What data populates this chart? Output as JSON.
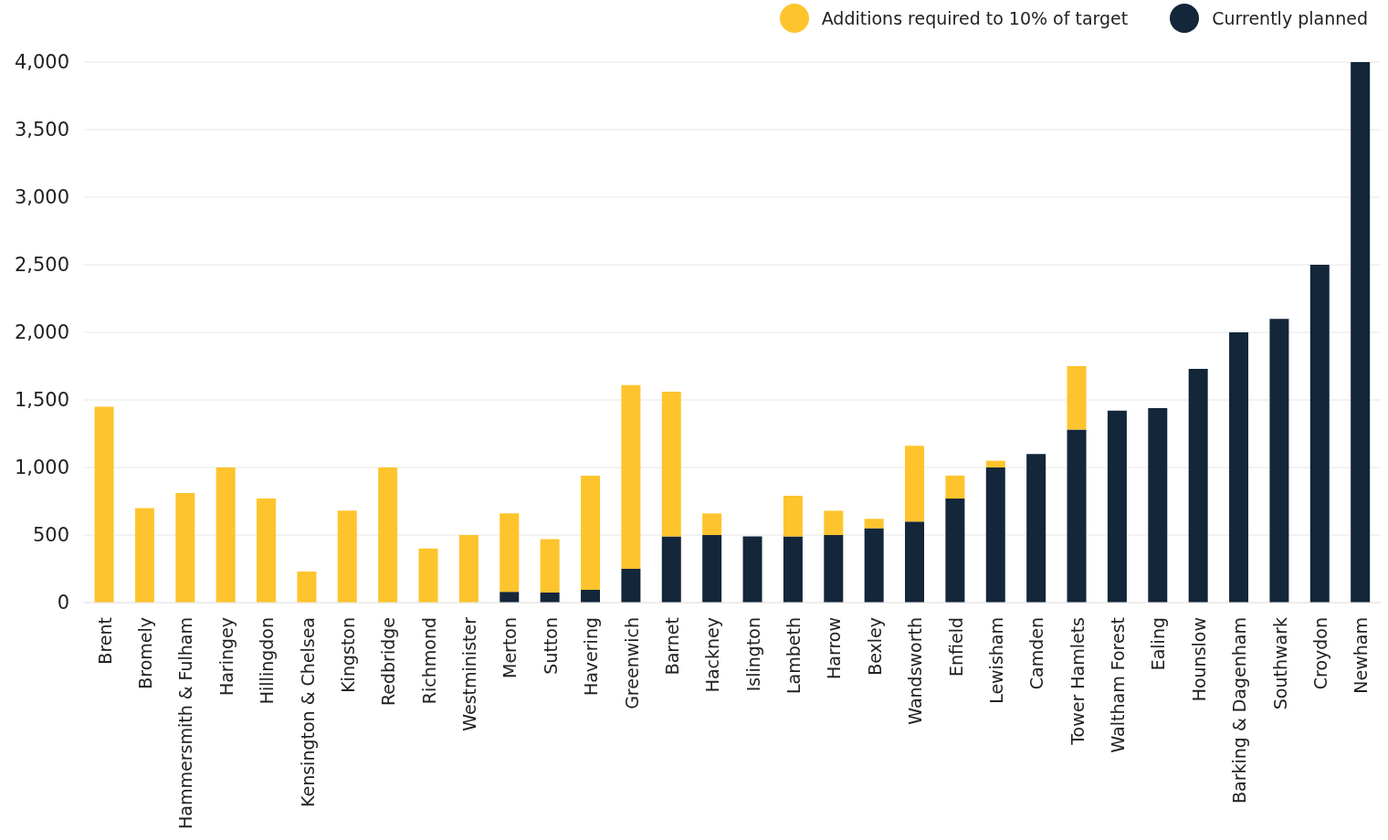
{
  "chart_data": {
    "type": "bar",
    "stacked": true,
    "categories": [
      "Brent",
      "Bromely",
      "Hammersmith & Fulham",
      "Haringey",
      "Hillingdon",
      "Kensington & Chelsea",
      "Kingston",
      "Redbridge",
      "Richmond",
      "Westminister",
      "Merton",
      "Sutton",
      "Havering",
      "Greenwich",
      "Barnet",
      "Hackney",
      "Islington",
      "Lambeth",
      "Harrow",
      "Bexley",
      "Wandsworth",
      "Enfield",
      "Lewisham",
      "Camden",
      "Tower Hamlets",
      "Waltham Forest",
      "Ealing",
      "Hounslow",
      "Barking & Dagenham",
      "Southwark",
      "Croydon",
      "Newham"
    ],
    "series": [
      {
        "name": "Currently planned",
        "color": "#13263a",
        "values": [
          0,
          0,
          0,
          0,
          0,
          0,
          0,
          0,
          0,
          0,
          80,
          75,
          95,
          250,
          490,
          500,
          490,
          490,
          500,
          550,
          600,
          770,
          1000,
          1100,
          1280,
          1420,
          1440,
          1730,
          2000,
          2100,
          2500,
          4000
        ]
      },
      {
        "name": "Additions required to 10% of target",
        "color": "#fec42d",
        "values": [
          1450,
          700,
          810,
          1000,
          770,
          230,
          680,
          1000,
          400,
          500,
          580,
          395,
          845,
          1360,
          1070,
          160,
          0,
          300,
          180,
          70,
          560,
          170,
          50,
          0,
          470,
          0,
          0,
          0,
          0,
          0,
          0,
          0
        ]
      }
    ],
    "ylim": [
      0,
      4000
    ],
    "yticks": [
      0,
      500,
      {
        "value": 1000,
        "label": "1,000"
      },
      {
        "value": 1500,
        "label": "1,500"
      },
      {
        "value": 2000,
        "label": "2,000"
      },
      {
        "value": 2500,
        "label": "2,500"
      },
      {
        "value": 3000,
        "label": "3,000"
      },
      {
        "value": 3500,
        "label": "3,500"
      },
      {
        "value": 4000,
        "label": "4,000"
      }
    ],
    "grid": "y",
    "legend": "top right"
  }
}
